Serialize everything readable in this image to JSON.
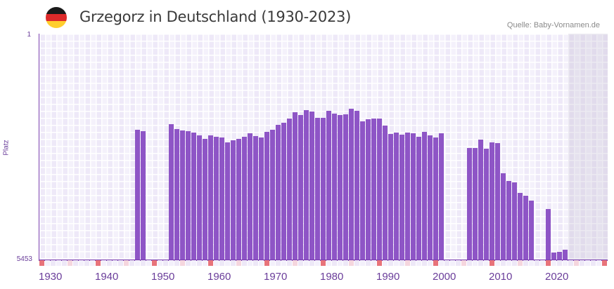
{
  "header": {
    "title": "Grzegorz in Deutschland (1930-2023)",
    "source": "Quelle: Baby-Vornamen.de"
  },
  "colors": {
    "bar": "#8e55c6",
    "axis": "#7a3fb0",
    "decade_marker": "#e8737a",
    "half_decade_marker": "#f5d6de",
    "flag": [
      "#1a1a1a",
      "#dd2a2a",
      "#ffce2e"
    ]
  },
  "chart_data": {
    "type": "bar",
    "title": "Grzegorz in Deutschland (1930-2023)",
    "xlabel": "",
    "ylabel": "Platz",
    "ylim": [
      1,
      5453
    ],
    "y_ticks": [
      "1",
      "5453"
    ],
    "x_range": [
      1930,
      2030
    ],
    "x_ticks": [
      "1930",
      "1940",
      "1950",
      "1960",
      "1970",
      "1980",
      "1990",
      "2000",
      "2010",
      "2020"
    ],
    "note": "y axis inverted: rank 1 at top",
    "years": [
      1947,
      1948,
      1953,
      1954,
      1955,
      1956,
      1957,
      1958,
      1959,
      1960,
      1961,
      1962,
      1963,
      1964,
      1965,
      1966,
      1967,
      1968,
      1969,
      1970,
      1971,
      1972,
      1973,
      1974,
      1975,
      1976,
      1977,
      1978,
      1979,
      1980,
      1981,
      1982,
      1983,
      1984,
      1985,
      1986,
      1987,
      1988,
      1989,
      1990,
      1991,
      1992,
      1993,
      1994,
      1995,
      1996,
      1997,
      1998,
      1999,
      2000,
      2001,
      2006,
      2007,
      2008,
      2009,
      2010,
      2011,
      2012,
      2013,
      2014,
      2015,
      2016,
      2017,
      2020,
      2021,
      2022,
      2023
    ],
    "values": [
      2321,
      2354,
      2185,
      2304,
      2337,
      2354,
      2388,
      2456,
      2541,
      2456,
      2490,
      2507,
      2625,
      2575,
      2541,
      2490,
      2405,
      2473,
      2507,
      2371,
      2321,
      2202,
      2151,
      2050,
      1897,
      1965,
      1847,
      1880,
      2033,
      2033,
      1863,
      1931,
      1965,
      1948,
      1813,
      1863,
      2117,
      2067,
      2050,
      2050,
      2219,
      2422,
      2388,
      2439,
      2388,
      2405,
      2490,
      2371,
      2456,
      2507,
      2405,
      2761,
      2761,
      2558,
      2778,
      2625,
      2642,
      3370,
      3556,
      3590,
      3844,
      3912,
      4031,
      4234,
      5284,
      5267,
      5216
    ],
    "future_from": 2024
  }
}
